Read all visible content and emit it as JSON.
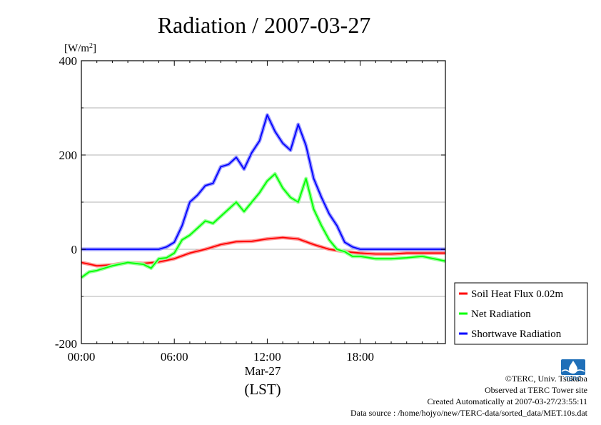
{
  "chart_data": {
    "type": "line",
    "title": "Radiation / 2007-03-27",
    "ylabel": "[W/m",
    "ylabel_sup": "2",
    "ylabel_close": "]",
    "ylim": [
      -200,
      400
    ],
    "yticks": [
      "400",
      "200",
      "0",
      "-200"
    ],
    "xlim": [
      0,
      23.5
    ],
    "xticks": [
      "00:00",
      "06:00",
      "12:00",
      "18:00"
    ],
    "xdate": "Mar-27",
    "xlabel": "(LST)",
    "grid": true,
    "legend_position": "right",
    "series": [
      {
        "name": "Soil Heat Flux 0.02m",
        "color": "#ff0000",
        "x": [
          0,
          1,
          2,
          3,
          4,
          5,
          6,
          7,
          8,
          9,
          10,
          11,
          12,
          13,
          14,
          15,
          16,
          17,
          18,
          19,
          20,
          21,
          22,
          23.5
        ],
        "y": [
          -28,
          -35,
          -33,
          -28,
          -30,
          -27,
          -20,
          -8,
          0,
          10,
          16,
          17,
          22,
          25,
          22,
          10,
          0,
          -5,
          -8,
          -10,
          -10,
          -8,
          -8,
          -8
        ]
      },
      {
        "name": "Net Radiation",
        "color": "#00ff00",
        "x": [
          0,
          0.5,
          1,
          2,
          3,
          4,
          4.5,
          5,
          5.5,
          6,
          6.5,
          7,
          7.5,
          8,
          8.5,
          9,
          9.5,
          10,
          10.5,
          11,
          11.5,
          12,
          12.5,
          13,
          13.5,
          14,
          14.5,
          15,
          15.5,
          16,
          16.5,
          17,
          17.5,
          18,
          19,
          20,
          21,
          22,
          23.5
        ],
        "y": [
          -60,
          -48,
          -45,
          -35,
          -28,
          -32,
          -40,
          -20,
          -18,
          -8,
          20,
          30,
          45,
          60,
          55,
          70,
          85,
          100,
          80,
          100,
          120,
          145,
          160,
          130,
          110,
          100,
          150,
          85,
          50,
          20,
          0,
          -5,
          -15,
          -15,
          -20,
          -20,
          -18,
          -15,
          -25
        ],
        "area": false
      },
      {
        "name": "Shortwave Radiation",
        "color": "#0000ff",
        "x": [
          0,
          1,
          2,
          3,
          4,
          5,
          5.5,
          6,
          6.5,
          7,
          7.5,
          8,
          8.5,
          9,
          9.5,
          10,
          10.5,
          11,
          11.5,
          12,
          12.5,
          13,
          13.5,
          14,
          14.5,
          15,
          15.5,
          16,
          16.5,
          17,
          17.5,
          18,
          19,
          20,
          21,
          22,
          23.5
        ],
        "y": [
          0,
          0,
          0,
          0,
          0,
          0,
          5,
          15,
          50,
          100,
          115,
          135,
          140,
          175,
          180,
          195,
          170,
          205,
          230,
          285,
          250,
          225,
          210,
          265,
          220,
          150,
          110,
          75,
          50,
          15,
          5,
          0,
          0,
          0,
          0,
          0,
          0
        ]
      }
    ]
  },
  "credits": {
    "line1": "©TERC, Univ. Tsukuba",
    "line2": "Observed at TERC Tower site",
    "line3": "Created Automatically at 2007-03-27/23:55:11",
    "line4": "Data source : /home/hojyo/new/TERC-data/sorted_data/MET.10s.dat"
  },
  "logo": {
    "text": "TERC",
    "color": "#1f6fb8"
  }
}
